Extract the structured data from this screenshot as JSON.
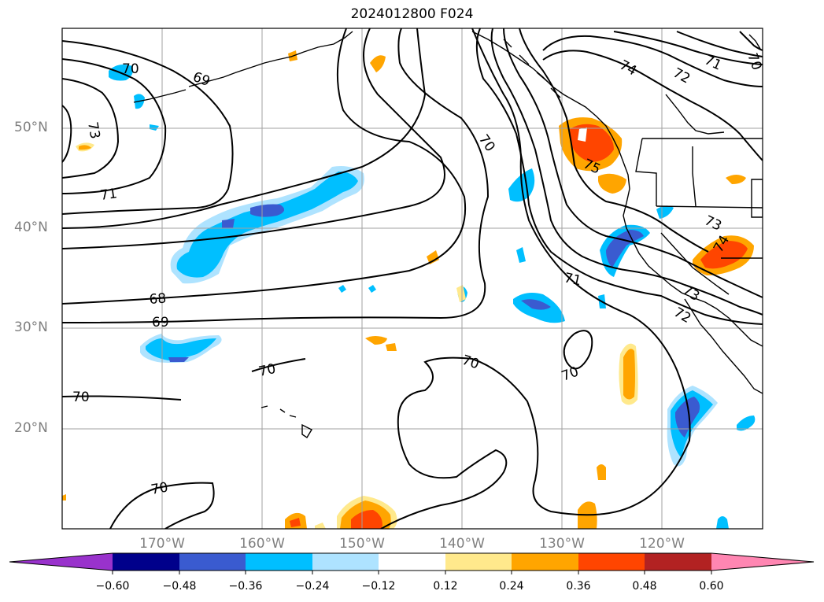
{
  "title": "2024012800 F024",
  "lat_labels": [
    "50°N",
    "40°N",
    "30°N",
    "20°N"
  ],
  "lon_labels": [
    "170°W",
    "160°W",
    "150°W",
    "140°W",
    "130°W",
    "120°W"
  ],
  "colorbar": {
    "labels": [
      "−0.60",
      "−0.48",
      "−0.36",
      "−0.24",
      "−0.12",
      "0.12",
      "0.24",
      "0.36",
      "0.48",
      "0.60"
    ],
    "colors": [
      "#9932cc",
      "#00008b",
      "#3a5bd0",
      "#00bfff",
      "#aee3ff",
      "#ffffff",
      "#ffe98c",
      "#ffa500",
      "#ff4500",
      "#b22222",
      "#ff86b2"
    ]
  },
  "contour_labels": [
    "70",
    "69",
    "73",
    "71",
    "68",
    "69",
    "70",
    "70",
    "70",
    "70",
    "75",
    "74",
    "72",
    "71",
    "70",
    "73",
    "74",
    "73",
    "72",
    "71",
    "70",
    "70"
  ],
  "colors": {
    "contour": "#000000",
    "grid": "#a0a0a0",
    "coast": "#000000"
  }
}
